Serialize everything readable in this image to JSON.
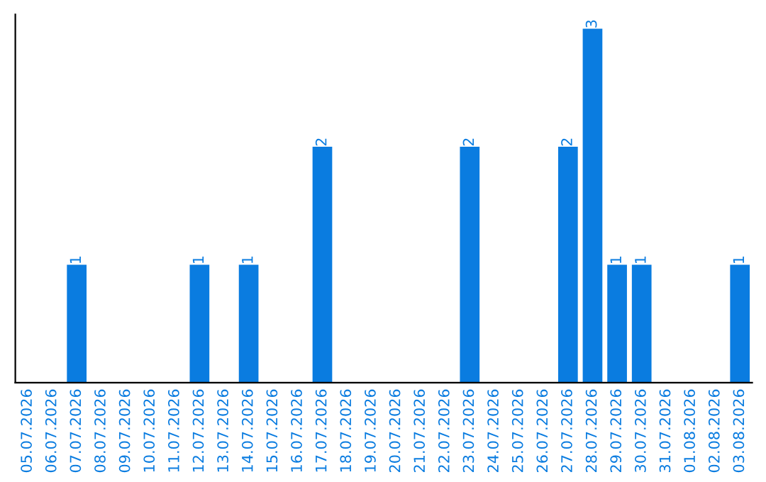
{
  "chart_data": {
    "type": "bar",
    "categories": [
      "05.07.2026",
      "06.07.2026",
      "07.07.2026",
      "08.07.2026",
      "09.07.2026",
      "10.07.2026",
      "11.07.2026",
      "12.07.2026",
      "13.07.2026",
      "14.07.2026",
      "15.07.2026",
      "16.07.2026",
      "17.07.2026",
      "18.07.2026",
      "19.07.2026",
      "20.07.2026",
      "21.07.2026",
      "22.07.2026",
      "23.07.2026",
      "24.07.2026",
      "25.07.2026",
      "26.07.2026",
      "27.07.2026",
      "28.07.2026",
      "29.07.2026",
      "30.07.2026",
      "31.07.2026",
      "01.08.2026",
      "02.08.2026",
      "03.08.2026"
    ],
    "values": [
      0,
      0,
      1,
      0,
      0,
      0,
      0,
      1,
      0,
      1,
      0,
      0,
      2,
      0,
      0,
      0,
      0,
      0,
      2,
      0,
      0,
      0,
      2,
      3,
      1,
      1,
      0,
      0,
      0,
      1
    ],
    "value_labels": [
      null,
      null,
      "1",
      null,
      null,
      null,
      null,
      "1",
      null,
      "1",
      null,
      null,
      "2",
      null,
      null,
      null,
      null,
      null,
      "2",
      null,
      null,
      null,
      "2",
      "3",
      "1",
      "1",
      null,
      null,
      null,
      "1"
    ],
    "color": "#0a7ce0",
    "relative": false,
    "grid": false,
    "legend": false
  }
}
